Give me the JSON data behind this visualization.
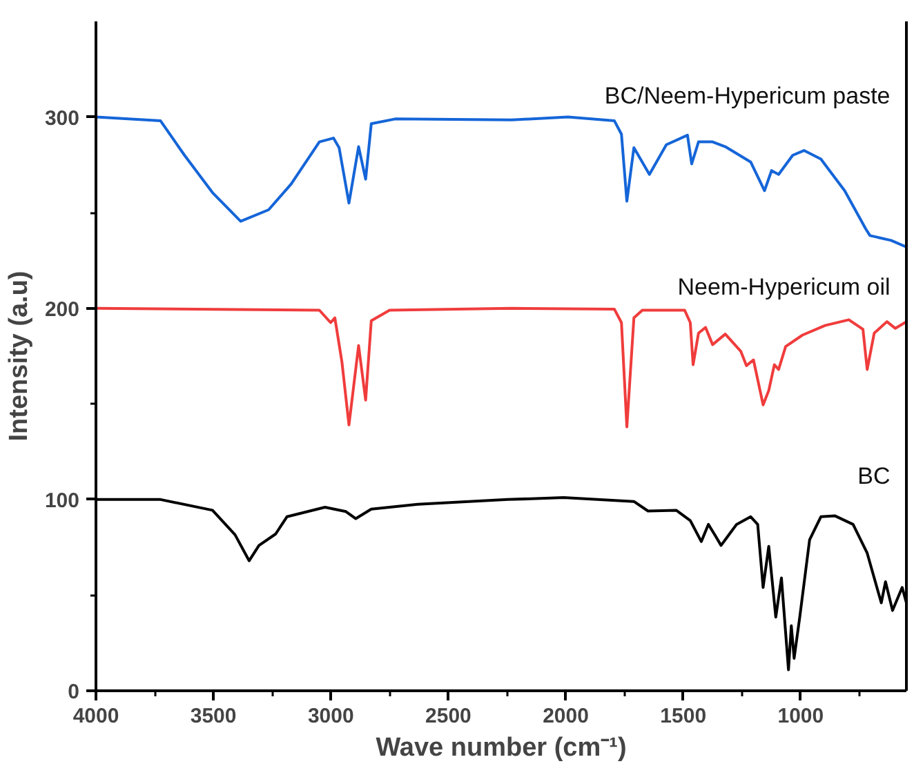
{
  "chart_data": {
    "type": "line",
    "xlabel": "Wave number (cm⁻¹)",
    "ylabel": "Intensity (a.u)",
    "xlim": [
      4000,
      550
    ],
    "ylim": [
      0,
      350
    ],
    "xticks": [
      4000,
      {
        "value": 3750,
        "label": null
      },
      3500,
      {
        "value": 3250,
        "label": null
      },
      3000,
      {
        "value": 2750,
        "label": null
      },
      2500,
      {
        "value": 2250,
        "label": null
      },
      2000,
      {
        "value": 1750,
        "label": null
      },
      1500,
      {
        "value": 1250,
        "label": null
      },
      1000,
      {
        "value": 750,
        "label": null
      }
    ],
    "yticks": [
      0,
      {
        "value": 50,
        "label": null
      },
      100,
      {
        "value": 150,
        "label": null
      },
      200,
      {
        "value": 250,
        "label": null
      },
      300
    ],
    "grid": false,
    "legend": false,
    "marker": "none",
    "line_style": "solid",
    "series": [
      {
        "name": "BC/Neem-Hypericum paste",
        "color": "#1565d8",
        "x": [
          4000,
          3725,
          3623,
          3504,
          3384,
          3265,
          3169,
          3049,
          2989,
          2965,
          2923,
          2882,
          2852,
          2828,
          2726,
          2230,
          1991,
          1793,
          1763,
          1740,
          1710,
          1644,
          1572,
          1482,
          1464,
          1435,
          1375,
          1321,
          1213,
          1154,
          1124,
          1094,
          1034,
          986,
          914,
          813,
          723,
          705,
          615,
          550
        ],
        "values": [
          300,
          298,
          280,
          260.5,
          245.5,
          251.5,
          265,
          287,
          289,
          284,
          255,
          284.5,
          267.5,
          296.5,
          299,
          298.5,
          300,
          298,
          291,
          256,
          284,
          270,
          285.5,
          290.5,
          275.5,
          287,
          287,
          284.5,
          276.5,
          261.5,
          272,
          270,
          280,
          282.5,
          278,
          261.5,
          241.5,
          238,
          235.5,
          232
        ]
      },
      {
        "name": "Neem-Hypericum oil",
        "color": "#f03c3c",
        "x": [
          4000,
          3049,
          3001,
          2983,
          2953,
          2923,
          2882,
          2852,
          2828,
          2750,
          2230,
          1793,
          1763,
          1740,
          1710,
          1674,
          1494,
          1470,
          1458,
          1435,
          1405,
          1375,
          1321,
          1255,
          1231,
          1201,
          1160,
          1136,
          1112,
          1094,
          1064,
          992,
          896,
          795,
          735,
          717,
          687,
          633,
          597,
          550
        ],
        "values": [
          200,
          199,
          192.5,
          195,
          172,
          139,
          180.5,
          152,
          193.5,
          199,
          200,
          199.5,
          192.5,
          138,
          195,
          199,
          199,
          192.5,
          170.5,
          187,
          190,
          181,
          186.5,
          177.5,
          170,
          173,
          149.5,
          157,
          170.5,
          168,
          180,
          186,
          191,
          194,
          189,
          168,
          187,
          193,
          189.5,
          193
        ]
      },
      {
        "name": "BC",
        "color": "#000000",
        "x": [
          4000,
          3725,
          3504,
          3408,
          3348,
          3306,
          3235,
          3187,
          3025,
          2936,
          2894,
          2828,
          2630,
          2248,
          2009,
          1710,
          1650,
          1530,
          1470,
          1423,
          1393,
          1363,
          1339,
          1315,
          1273,
          1213,
          1183,
          1160,
          1136,
          1106,
          1082,
          1052,
          1040,
          1028,
          1004,
          962,
          914,
          855,
          777,
          717,
          657,
          639,
          609,
          568,
          550
        ],
        "values": [
          100,
          100,
          94.4,
          81.6,
          68,
          76,
          82,
          91,
          96,
          93.7,
          90,
          95,
          97.5,
          100,
          101,
          99,
          94,
          94.4,
          89,
          78,
          87,
          81,
          76,
          80,
          87,
          91,
          87,
          54,
          75.5,
          38.5,
          59,
          11,
          34,
          17,
          38.5,
          79,
          91,
          91.5,
          87,
          72,
          46,
          57,
          42,
          54,
          46
        ]
      }
    ]
  }
}
